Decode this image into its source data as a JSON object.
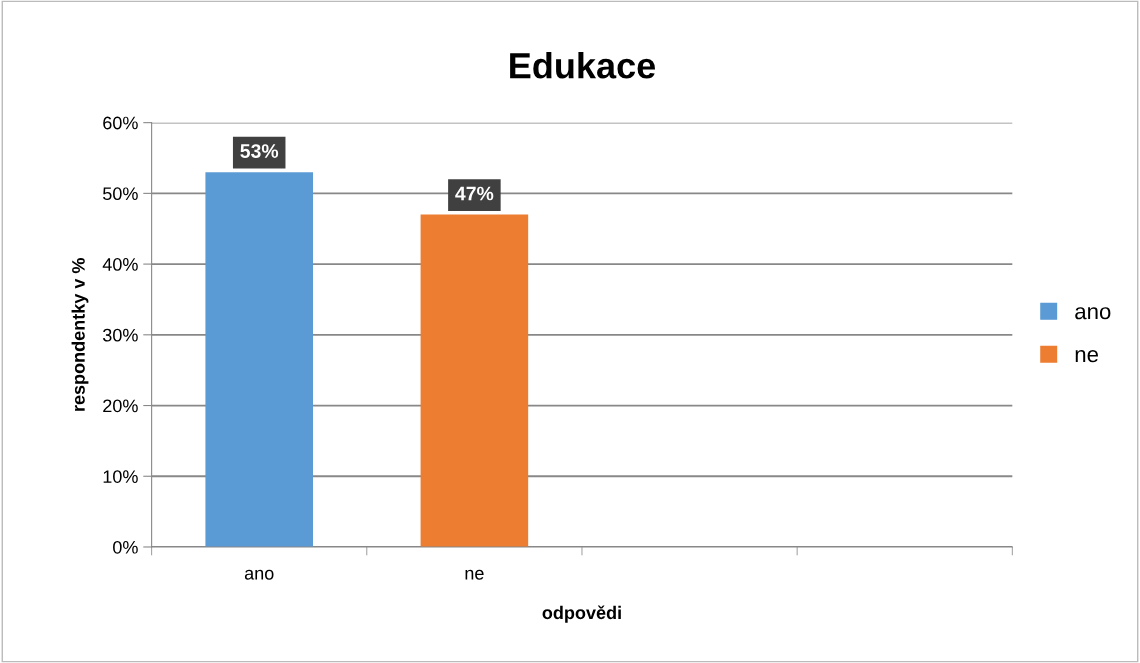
{
  "chart_data": {
    "type": "bar",
    "title": "Edukace",
    "xlabel": "odpovědi",
    "ylabel": "respondentky v %",
    "categories": [
      "ano",
      "ne",
      null,
      null
    ],
    "series": [
      {
        "name": "ano",
        "color": "#5b9bd5",
        "values": [
          53,
          null,
          null,
          null
        ],
        "value_labels": [
          "53%",
          null,
          null,
          null
        ]
      },
      {
        "name": "ne",
        "color": "#ed7d31",
        "values": [
          null,
          47,
          null,
          null
        ],
        "value_labels": [
          null,
          "47%",
          null,
          null
        ]
      }
    ],
    "ylim": [
      0,
      60
    ],
    "yticks": [
      {
        "value": 0,
        "label": "0%"
      },
      {
        "value": 10,
        "label": "10%"
      },
      {
        "value": 20,
        "label": "20%"
      },
      {
        "value": 30,
        "label": "30%"
      },
      {
        "value": 40,
        "label": "40%"
      },
      {
        "value": 50,
        "label": "50%"
      },
      {
        "value": 60,
        "label": "60%"
      }
    ],
    "grid": "y",
    "legend": "right"
  }
}
